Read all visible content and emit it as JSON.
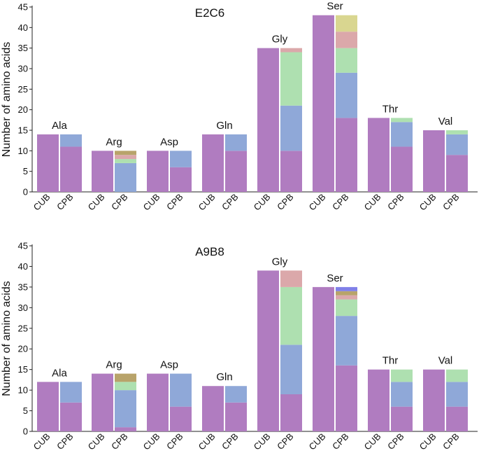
{
  "segment_colors": {
    "purple": "#b07cc0",
    "blue": "#8fa8d8",
    "green": "#aee0b0",
    "pink": "#dba8aa",
    "yellow": "#d9d690",
    "olive": "#b8a36a",
    "violet": "#8080e8"
  },
  "chart_data": [
    {
      "type": "bar",
      "stacked": true,
      "title": "E2C6",
      "ylabel": "Number of amino acids",
      "xlabel": "",
      "ylim": [
        0,
        45
      ],
      "yticks": [
        0,
        5,
        10,
        15,
        20,
        25,
        30,
        35,
        40,
        45
      ],
      "groups": [
        {
          "label": "Ala",
          "bars": [
            {
              "label": "CUB",
              "segments": [
                {
                  "color": "purple",
                  "value": 14
                }
              ]
            },
            {
              "label": "CPB",
              "segments": [
                {
                  "color": "purple",
                  "value": 11
                },
                {
                  "color": "blue",
                  "value": 3
                }
              ]
            }
          ]
        },
        {
          "label": "Arg",
          "bars": [
            {
              "label": "CUB",
              "segments": [
                {
                  "color": "purple",
                  "value": 10
                }
              ]
            },
            {
              "label": "CPB",
              "segments": [
                {
                  "color": "blue",
                  "value": 7
                },
                {
                  "color": "green",
                  "value": 1
                },
                {
                  "color": "pink",
                  "value": 1
                },
                {
                  "color": "olive",
                  "value": 1
                }
              ]
            }
          ]
        },
        {
          "label": "Asp",
          "bars": [
            {
              "label": "CUB",
              "segments": [
                {
                  "color": "purple",
                  "value": 10
                }
              ]
            },
            {
              "label": "CPB",
              "segments": [
                {
                  "color": "purple",
                  "value": 6
                },
                {
                  "color": "blue",
                  "value": 4
                }
              ]
            }
          ]
        },
        {
          "label": "Gln",
          "bars": [
            {
              "label": "CUB",
              "segments": [
                {
                  "color": "purple",
                  "value": 14
                }
              ]
            },
            {
              "label": "CPB",
              "segments": [
                {
                  "color": "purple",
                  "value": 10
                },
                {
                  "color": "blue",
                  "value": 4
                }
              ]
            }
          ]
        },
        {
          "label": "Gly",
          "bars": [
            {
              "label": "CUB",
              "segments": [
                {
                  "color": "purple",
                  "value": 35
                }
              ]
            },
            {
              "label": "CPB",
              "segments": [
                {
                  "color": "purple",
                  "value": 10
                },
                {
                  "color": "blue",
                  "value": 11
                },
                {
                  "color": "green",
                  "value": 13
                },
                {
                  "color": "pink",
                  "value": 1
                }
              ]
            }
          ]
        },
        {
          "label": "Ser",
          "bars": [
            {
              "label": "CUB",
              "segments": [
                {
                  "color": "purple",
                  "value": 43
                }
              ]
            },
            {
              "label": "CPB",
              "segments": [
                {
                  "color": "purple",
                  "value": 18
                },
                {
                  "color": "blue",
                  "value": 11
                },
                {
                  "color": "green",
                  "value": 6
                },
                {
                  "color": "pink",
                  "value": 4
                },
                {
                  "color": "yellow",
                  "value": 4
                }
              ]
            }
          ]
        },
        {
          "label": "Thr",
          "bars": [
            {
              "label": "CUB",
              "segments": [
                {
                  "color": "purple",
                  "value": 18
                }
              ]
            },
            {
              "label": "CPB",
              "segments": [
                {
                  "color": "purple",
                  "value": 11
                },
                {
                  "color": "blue",
                  "value": 6
                },
                {
                  "color": "green",
                  "value": 1
                }
              ]
            }
          ]
        },
        {
          "label": "Val",
          "bars": [
            {
              "label": "CUB",
              "segments": [
                {
                  "color": "purple",
                  "value": 15
                }
              ]
            },
            {
              "label": "CPB",
              "segments": [
                {
                  "color": "purple",
                  "value": 9
                },
                {
                  "color": "blue",
                  "value": 5
                },
                {
                  "color": "green",
                  "value": 1
                }
              ]
            }
          ]
        }
      ]
    },
    {
      "type": "bar",
      "stacked": true,
      "title": "A9B8",
      "ylabel": "Number of amino acids",
      "xlabel": "",
      "ylim": [
        0,
        45
      ],
      "yticks": [
        0,
        5,
        10,
        15,
        20,
        25,
        30,
        35,
        40,
        45
      ],
      "groups": [
        {
          "label": "Ala",
          "bars": [
            {
              "label": "CUB",
              "segments": [
                {
                  "color": "purple",
                  "value": 12
                }
              ]
            },
            {
              "label": "CPB",
              "segments": [
                {
                  "color": "purple",
                  "value": 7
                },
                {
                  "color": "blue",
                  "value": 5
                }
              ]
            }
          ]
        },
        {
          "label": "Arg",
          "bars": [
            {
              "label": "CUB",
              "segments": [
                {
                  "color": "purple",
                  "value": 14
                }
              ]
            },
            {
              "label": "CPB",
              "segments": [
                {
                  "color": "purple",
                  "value": 1
                },
                {
                  "color": "blue",
                  "value": 9
                },
                {
                  "color": "green",
                  "value": 2
                },
                {
                  "color": "olive",
                  "value": 2
                }
              ]
            }
          ]
        },
        {
          "label": "Asp",
          "bars": [
            {
              "label": "CUB",
              "segments": [
                {
                  "color": "purple",
                  "value": 14
                }
              ]
            },
            {
              "label": "CPB",
              "segments": [
                {
                  "color": "purple",
                  "value": 6
                },
                {
                  "color": "blue",
                  "value": 8
                }
              ]
            }
          ]
        },
        {
          "label": "Gln",
          "bars": [
            {
              "label": "CUB",
              "segments": [
                {
                  "color": "purple",
                  "value": 11
                }
              ]
            },
            {
              "label": "CPB",
              "segments": [
                {
                  "color": "purple",
                  "value": 7
                },
                {
                  "color": "blue",
                  "value": 4
                }
              ]
            }
          ]
        },
        {
          "label": "Gly",
          "bars": [
            {
              "label": "CUB",
              "segments": [
                {
                  "color": "purple",
                  "value": 39
                }
              ]
            },
            {
              "label": "CPB",
              "segments": [
                {
                  "color": "purple",
                  "value": 9
                },
                {
                  "color": "blue",
                  "value": 12
                },
                {
                  "color": "green",
                  "value": 14
                },
                {
                  "color": "pink",
                  "value": 4
                }
              ]
            }
          ]
        },
        {
          "label": "Ser",
          "bars": [
            {
              "label": "CUB",
              "segments": [
                {
                  "color": "purple",
                  "value": 35
                }
              ]
            },
            {
              "label": "CPB",
              "segments": [
                {
                  "color": "purple",
                  "value": 16
                },
                {
                  "color": "blue",
                  "value": 12
                },
                {
                  "color": "green",
                  "value": 4
                },
                {
                  "color": "pink",
                  "value": 1
                },
                {
                  "color": "olive",
                  "value": 1
                },
                {
                  "color": "violet",
                  "value": 1
                }
              ]
            }
          ]
        },
        {
          "label": "Thr",
          "bars": [
            {
              "label": "CUB",
              "segments": [
                {
                  "color": "purple",
                  "value": 15
                }
              ]
            },
            {
              "label": "CPB",
              "segments": [
                {
                  "color": "purple",
                  "value": 6
                },
                {
                  "color": "blue",
                  "value": 6
                },
                {
                  "color": "green",
                  "value": 3
                }
              ]
            }
          ]
        },
        {
          "label": "Val",
          "bars": [
            {
              "label": "CUB",
              "segments": [
                {
                  "color": "purple",
                  "value": 15
                }
              ]
            },
            {
              "label": "CPB",
              "segments": [
                {
                  "color": "purple",
                  "value": 6
                },
                {
                  "color": "blue",
                  "value": 6
                },
                {
                  "color": "green",
                  "value": 3
                }
              ]
            }
          ]
        }
      ]
    }
  ]
}
